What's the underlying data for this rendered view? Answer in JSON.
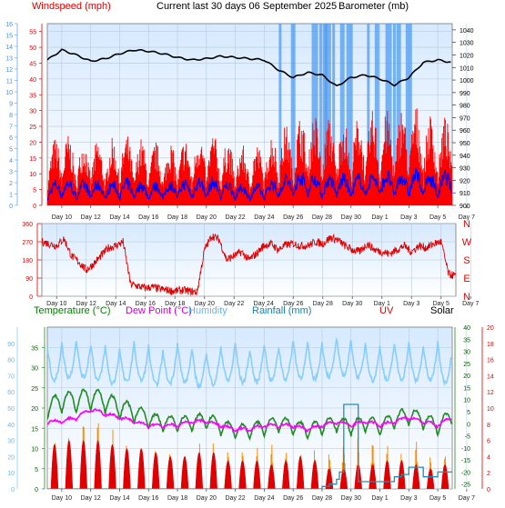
{
  "header": {
    "windspeed_label": "Windspeed (mph)",
    "title": "Current last 30 days 06 September 2025",
    "barometer_label": "Barometer (mb)"
  },
  "legend": {
    "temperature": "Temperature (°C)",
    "dew_point": "Dew Point (°C)",
    "humidity": "Humidity",
    "rainfall": "Rainfall (mm)",
    "uv": "UV",
    "solar": "Solar"
  },
  "colors": {
    "wind_gust": "#ff0000",
    "wind_avg": "#0000ff",
    "barometer": "#000000",
    "rain_bars": "#4f9cf0",
    "direction": "#e00000",
    "temperature": "#228b22",
    "dew_point": "#ff00ff",
    "humidity": "#87cefa",
    "rainfall": "#1f8fbf",
    "uv": "#e00000",
    "solar": "#ff8c00",
    "plot_bg_top": "#d6e9ff",
    "plot_bg_bottom": "#ffffff"
  },
  "chart_data": [
    {
      "type": "line",
      "panel": "wind_barometer",
      "title": "Current last 30 days 06 September 2025",
      "x_tick_labels": [
        "Day 10",
        "Day 12",
        "Day 14",
        "Day 16",
        "Day 18",
        "Day 20",
        "Day 22",
        "Day 24",
        "Day 26",
        "Day 28",
        "Day 30",
        "Day 1",
        "Day 3",
        "Day 5",
        "Day 7"
      ],
      "y_left_outer": {
        "label": "",
        "ticks": [
          "0",
          "1",
          "2",
          "3",
          "4",
          "5",
          "6",
          "7",
          "8",
          "9",
          "10",
          "11",
          "12",
          "13",
          "14",
          "15",
          "16"
        ],
        "ylim": [
          0,
          16
        ]
      },
      "y_left_inner": {
        "label": "Windspeed (mph)",
        "ticks": [
          "0",
          "5",
          "10",
          "15",
          "20",
          "25",
          "30",
          "35",
          "40",
          "45",
          "50",
          "55"
        ],
        "ylim": [
          0,
          57.5
        ]
      },
      "y_right": {
        "label": "Barometer (mb)",
        "ticks": [
          "900",
          "910",
          "920",
          "930",
          "940",
          "950",
          "960",
          "970",
          "980",
          "990",
          "1000",
          "1010",
          "1020",
          "1030",
          "1040"
        ],
        "ylim": [
          900,
          1045
        ]
      },
      "grid": true,
      "series": [
        {
          "name": "",
          "role": "barometer",
          "x": [
            9,
            10,
            11,
            12,
            13,
            14,
            15,
            16,
            17,
            18,
            19,
            20,
            21,
            22,
            23,
            24,
            25,
            26,
            27,
            28,
            29,
            30,
            31,
            32,
            33,
            34,
            35,
            36,
            37
          ],
          "values": [
            1016,
            1024,
            1020,
            1015,
            1017,
            1021,
            1024,
            1023,
            1021,
            1018,
            1016,
            1017,
            1019,
            1018,
            1017,
            1016,
            1008,
            1002,
            1006,
            1004,
            995,
            1002,
            1004,
            1001,
            996,
            1002,
            1014,
            1016,
            1014
          ]
        },
        {
          "name": "",
          "role": "gust",
          "x": [
            9,
            10,
            11,
            12,
            13,
            14,
            15,
            16,
            17,
            18,
            19,
            20,
            21,
            22,
            23,
            24,
            25,
            26,
            27,
            28,
            29,
            30,
            31,
            32,
            33,
            34,
            35,
            36,
            37
          ],
          "values": [
            16,
            23,
            18,
            20,
            18,
            21,
            20,
            19,
            18,
            19,
            20,
            22,
            20,
            18,
            17,
            19,
            23,
            24,
            28,
            25,
            26,
            25,
            27,
            28,
            27,
            30,
            28,
            25,
            27
          ]
        },
        {
          "name": "",
          "role": "average",
          "x": [
            9,
            10,
            11,
            12,
            13,
            14,
            15,
            16,
            17,
            18,
            19,
            20,
            21,
            22,
            23,
            24,
            25,
            26,
            27,
            28,
            29,
            30,
            31,
            32,
            33,
            34,
            35,
            36,
            37
          ],
          "values": [
            6,
            9,
            7,
            8,
            7,
            8,
            8,
            7,
            7,
            8,
            8,
            9,
            8,
            7,
            6,
            7,
            9,
            10,
            11,
            9,
            10,
            9,
            10,
            11,
            10,
            11,
            11,
            9,
            12
          ]
        },
        {
          "name": "",
          "role": "rain_markers",
          "x": [
            25.1,
            26.0,
            27.5,
            27.9,
            28.2,
            28.4,
            28.8,
            29.4,
            29.9,
            31.2,
            31.8,
            32.6,
            33.0,
            33.3,
            34.0
          ],
          "values": [
            1,
            1,
            1,
            1,
            1,
            1,
            1,
            1,
            1,
            1,
            1,
            1,
            1,
            1,
            1
          ]
        }
      ]
    },
    {
      "type": "scatter",
      "panel": "wind_direction",
      "x_tick_labels": [
        "Day 10",
        "Day 12",
        "Day 14",
        "Day 16",
        "Day 18",
        "Day 20",
        "Day 22",
        "Day 24",
        "Day 26",
        "Day 28",
        "Day 30",
        "Day 1",
        "Day 3",
        "Day 5",
        "Day 7"
      ],
      "y_left": {
        "label": "",
        "ticks": [
          "0",
          "90",
          "180",
          "270",
          "360"
        ],
        "ylim": [
          0,
          360
        ]
      },
      "y_right": {
        "label": "",
        "ticks": [
          "N",
          "E",
          "S",
          "W",
          "N"
        ]
      },
      "grid": true,
      "series": [
        {
          "name": "",
          "role": "direction",
          "x": [
            9,
            9.5,
            10,
            10.5,
            11,
            11.5,
            12,
            12.5,
            13,
            13.5,
            14,
            14.5,
            15,
            15.5,
            16,
            16.5,
            17,
            17.5,
            18,
            18.5,
            19,
            19.5,
            20,
            20.5,
            21,
            21.5,
            22,
            22.5,
            23,
            23.5,
            24,
            24.5,
            25,
            25.5,
            26,
            26.5,
            27,
            27.5,
            28,
            28.5,
            29,
            29.5,
            30,
            30.5,
            31,
            31.5,
            32,
            32.5,
            33,
            33.5,
            34,
            34.5,
            35,
            35.5,
            36,
            36.5,
            37
          ],
          "values": [
            270,
            260,
            250,
            285,
            200,
            170,
            130,
            160,
            200,
            240,
            250,
            270,
            60,
            50,
            40,
            45,
            35,
            30,
            25,
            30,
            25,
            20,
            230,
            300,
            280,
            180,
            200,
            220,
            180,
            210,
            250,
            260,
            230,
            255,
            260,
            250,
            250,
            270,
            260,
            290,
            280,
            250,
            230,
            220,
            260,
            230,
            220,
            210,
            230,
            250,
            220,
            250,
            240,
            260,
            270,
            110,
            100
          ]
        }
      ]
    },
    {
      "type": "line",
      "panel": "temperature_solar",
      "x_tick_labels": [
        "Day 10",
        "Day 12",
        "Day 14",
        "Day 16",
        "Day 18",
        "Day 20",
        "Day 22",
        "Day 24",
        "Day 26",
        "Day 28",
        "Day 30",
        "Day 1",
        "Day 3",
        "Day 5",
        "Day 7"
      ],
      "y_left_outer": {
        "label": "Humidity",
        "ticks": [
          "0",
          "10",
          "20",
          "30",
          "40",
          "50",
          "60",
          "70",
          "80",
          "90"
        ],
        "ylim": [
          0,
          100
        ]
      },
      "y_left_inner": {
        "label": "Temperature (°C)",
        "ticks": [
          "0",
          "5",
          "10",
          "15",
          "20",
          "25",
          "30",
          "35"
        ],
        "ylim": [
          0,
          40
        ]
      },
      "y_right_inner": {
        "label": "Rainfall (mm)",
        "ticks": [
          "-25",
          "-20",
          "-15",
          "-10",
          "-5",
          "0",
          "5",
          "10",
          "15",
          "20",
          "25",
          "30",
          "35",
          "40"
        ],
        "ylim": [
          -27,
          40
        ]
      },
      "y_right_outer": {
        "label": "UV",
        "ticks": [
          "0",
          "2",
          "4",
          "6",
          "8",
          "10",
          "12",
          "14",
          "16",
          "18",
          "20"
        ],
        "ylim": [
          0,
          20
        ]
      },
      "grid": true,
      "series": [
        {
          "name": "Temperature (°C)",
          "role": "temperature",
          "x": [
            9,
            10,
            11,
            12,
            13,
            14,
            15,
            16,
            17,
            18,
            19,
            20,
            21,
            22,
            23,
            24,
            25,
            26,
            27,
            28,
            29,
            30,
            31,
            32,
            33,
            34,
            35,
            36,
            37
          ],
          "values": [
            22,
            24,
            24,
            25,
            24,
            22,
            21,
            19,
            18,
            18,
            18,
            19,
            17,
            16,
            16,
            17,
            18,
            17,
            16,
            17,
            18,
            17,
            18,
            17,
            19,
            20,
            19,
            17,
            20
          ]
        },
        {
          "name": "Dew Point (°C)",
          "role": "dew_point",
          "x": [
            9,
            10,
            11,
            12,
            13,
            14,
            15,
            16,
            17,
            18,
            19,
            20,
            21,
            22,
            23,
            24,
            25,
            26,
            27,
            28,
            29,
            30,
            31,
            32,
            33,
            34,
            35,
            36,
            37
          ],
          "values": [
            17,
            17,
            18,
            20,
            19,
            18,
            17,
            16,
            16,
            16,
            17,
            17,
            16,
            15,
            15,
            16,
            16,
            16,
            15,
            16,
            17,
            16,
            17,
            16,
            17,
            18,
            17,
            16,
            18
          ]
        },
        {
          "name": "Humidity",
          "role": "humidity",
          "x": [
            9,
            10,
            11,
            12,
            13,
            14,
            15,
            16,
            17,
            18,
            19,
            20,
            21,
            22,
            23,
            24,
            25,
            26,
            27,
            28,
            29,
            30,
            31,
            32,
            33,
            34,
            35,
            36,
            37
          ],
          "values": [
            88,
            90,
            92,
            90,
            88,
            86,
            90,
            88,
            85,
            90,
            86,
            85,
            88,
            90,
            86,
            90,
            88,
            92,
            90,
            90,
            93,
            92,
            90,
            88,
            90,
            90,
            88,
            90,
            86
          ]
        },
        {
          "name": "Rainfall (mm)",
          "role": "rainfall_cumulative",
          "x": [
            9,
            27,
            28,
            28.5,
            29,
            29.2,
            29.5,
            30,
            30.5,
            31,
            32,
            33,
            33.5,
            34,
            35,
            36,
            37
          ],
          "values": [
            -27,
            -27,
            -26,
            -25,
            -23,
            -20,
            8,
            8,
            -24,
            -24,
            -24,
            -22,
            -21,
            -18,
            -22,
            -20,
            -20
          ]
        },
        {
          "name": "UV",
          "role": "uv",
          "x": [
            9,
            10,
            11,
            12,
            13,
            14,
            15,
            16,
            17,
            18,
            19,
            20,
            21,
            22,
            23,
            24,
            25,
            26,
            27,
            28,
            29,
            30,
            31,
            32,
            33,
            34,
            35,
            36,
            37
          ],
          "values": [
            5,
            6,
            6,
            6,
            6,
            5,
            5,
            5,
            4,
            4,
            4,
            5,
            4,
            3,
            4,
            3,
            3,
            4,
            4,
            3,
            2,
            3,
            3,
            3,
            4,
            3,
            3,
            2,
            4
          ]
        },
        {
          "name": "Solar",
          "role": "solar",
          "x": [
            9,
            10,
            11,
            12,
            13,
            14,
            15,
            16,
            17,
            18,
            19,
            20,
            21,
            22,
            23,
            24,
            25,
            26,
            27,
            28,
            29,
            30,
            31,
            32,
            33,
            34,
            35,
            36,
            37
          ],
          "values": [
            14,
            16,
            18,
            19,
            16,
            15,
            14,
            12,
            9,
            11,
            12,
            13,
            12,
            8,
            11,
            12,
            12,
            10,
            13,
            11,
            12,
            15,
            14,
            13,
            10,
            14,
            11,
            8,
            12
          ]
        }
      ]
    }
  ]
}
